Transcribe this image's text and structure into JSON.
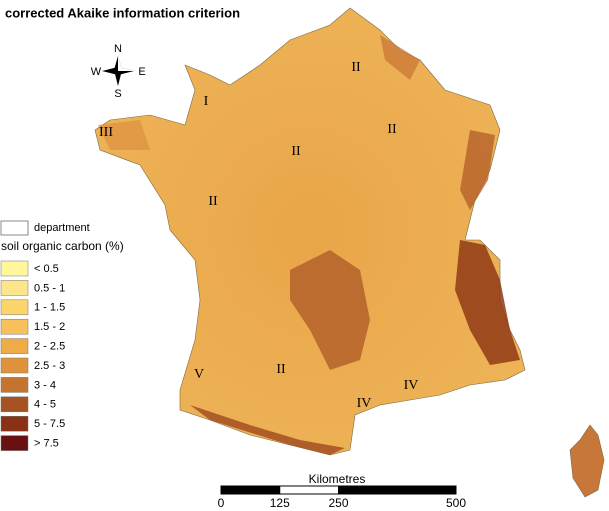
{
  "header": {
    "title": "corrected Akaike information criterion"
  },
  "compass": {
    "north": "N",
    "south": "S",
    "east": "E",
    "west": "W"
  },
  "regions": [
    "I",
    "II",
    "II",
    "II",
    "II",
    "III",
    "II",
    "V",
    "IV",
    "IV"
  ],
  "legend": {
    "boundary": "department",
    "title": "soil organic carbon (%)",
    "classes": [
      {
        "label": "< 0.5",
        "color": "#fff799"
      },
      {
        "label": "0.5 - 1",
        "color": "#fde68a"
      },
      {
        "label": "1 - 1.5",
        "color": "#fbd56c"
      },
      {
        "label": "1.5 - 2",
        "color": "#f6c05a"
      },
      {
        "label": "2 - 2.5",
        "color": "#eeab46"
      },
      {
        "label": "2.5 - 3",
        "color": "#df923a"
      },
      {
        "label": "3 - 4",
        "color": "#c77330"
      },
      {
        "label": "4 - 5",
        "color": "#a65222"
      },
      {
        "label": "5 - 7.5",
        "color": "#893114"
      },
      {
        "label": "> 7.5",
        "color": "#6b1010"
      }
    ]
  },
  "scale_bar": {
    "title": "Kilometres",
    "ticks": [
      0,
      125,
      250,
      500
    ]
  }
}
